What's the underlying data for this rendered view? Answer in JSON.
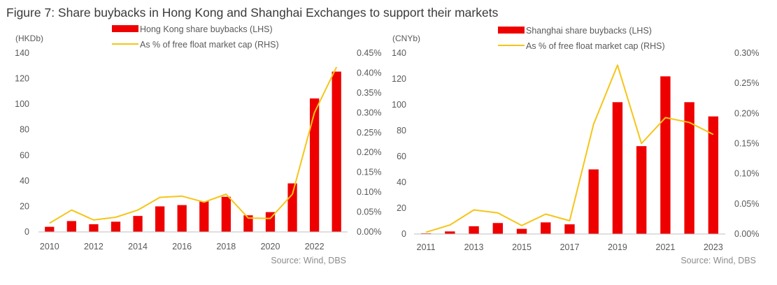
{
  "figure": {
    "title": "Figure 7: Share buybacks in Hong Kong and Shanghai Exchanges to support their markets"
  },
  "colors": {
    "bar": "#ee0000",
    "line": "#f5c518",
    "axis": "#bfbfbf",
    "text": "#595959"
  },
  "chart_data": [
    {
      "type": "bar+line",
      "title": "",
      "lhs_unit": "(HKDb)",
      "lhs_ylim": [
        0,
        140
      ],
      "lhs_ticks": [
        0,
        20,
        40,
        60,
        80,
        100,
        120,
        140
      ],
      "rhs_ylim": [
        0,
        0.45
      ],
      "rhs_ticks": [
        "0.00%",
        "0.05%",
        "0.10%",
        "0.15%",
        "0.20%",
        "0.25%",
        "0.30%",
        "0.35%",
        "0.40%",
        "0.45%"
      ],
      "x": [
        2010,
        2011,
        2012,
        2013,
        2014,
        2015,
        2016,
        2017,
        2018,
        2019,
        2020,
        2021,
        2022,
        2023
      ],
      "x_tick_labels": [
        "2010",
        "2012",
        "2014",
        "2016",
        "2018",
        "2020",
        "2022"
      ],
      "series": [
        {
          "name": "Hong Kong share buybacks (LHS)",
          "kind": "bar",
          "axis": "left",
          "values": [
            4,
            8.5,
            6,
            8,
            12.5,
            20,
            21,
            24,
            27.5,
            13,
            15.5,
            38,
            104.5,
            125.5
          ]
        },
        {
          "name": "As % of free float market cap (RHS)",
          "kind": "line",
          "axis": "right",
          "values": [
            0.022,
            0.055,
            0.03,
            0.037,
            0.055,
            0.087,
            0.09,
            0.075,
            0.095,
            0.035,
            0.034,
            0.095,
            0.3,
            0.415
          ]
        }
      ],
      "source": "Source: Wind, DBS"
    },
    {
      "type": "bar+line",
      "title": "",
      "lhs_unit": "(CNYb)",
      "lhs_ylim": [
        0,
        140
      ],
      "lhs_ticks": [
        0,
        20,
        40,
        60,
        80,
        100,
        120,
        140
      ],
      "rhs_ylim": [
        0,
        0.3
      ],
      "rhs_ticks": [
        "0.00%",
        "0.05%",
        "0.10%",
        "0.15%",
        "0.20%",
        "0.25%",
        "0.30%"
      ],
      "x": [
        2011,
        2012,
        2013,
        2014,
        2015,
        2016,
        2017,
        2018,
        2019,
        2020,
        2021,
        2022,
        2023
      ],
      "x_tick_labels": [
        "2011",
        "2013",
        "2015",
        "2017",
        "2019",
        "2021",
        "2023"
      ],
      "series": [
        {
          "name": "Shanghai share buybacks (LHS)",
          "kind": "bar",
          "axis": "left",
          "values": [
            0.5,
            2,
            6,
            8.5,
            4,
            9,
            7.5,
            50,
            102,
            68,
            122,
            102,
            91
          ]
        },
        {
          "name": "As % of free float market cap (RHS)",
          "kind": "line",
          "axis": "right",
          "values": [
            0.003,
            0.015,
            0.04,
            0.035,
            0.014,
            0.033,
            0.022,
            0.182,
            0.28,
            0.15,
            0.193,
            0.185,
            0.165
          ]
        }
      ],
      "source": "Source: Wind, DBS"
    }
  ]
}
